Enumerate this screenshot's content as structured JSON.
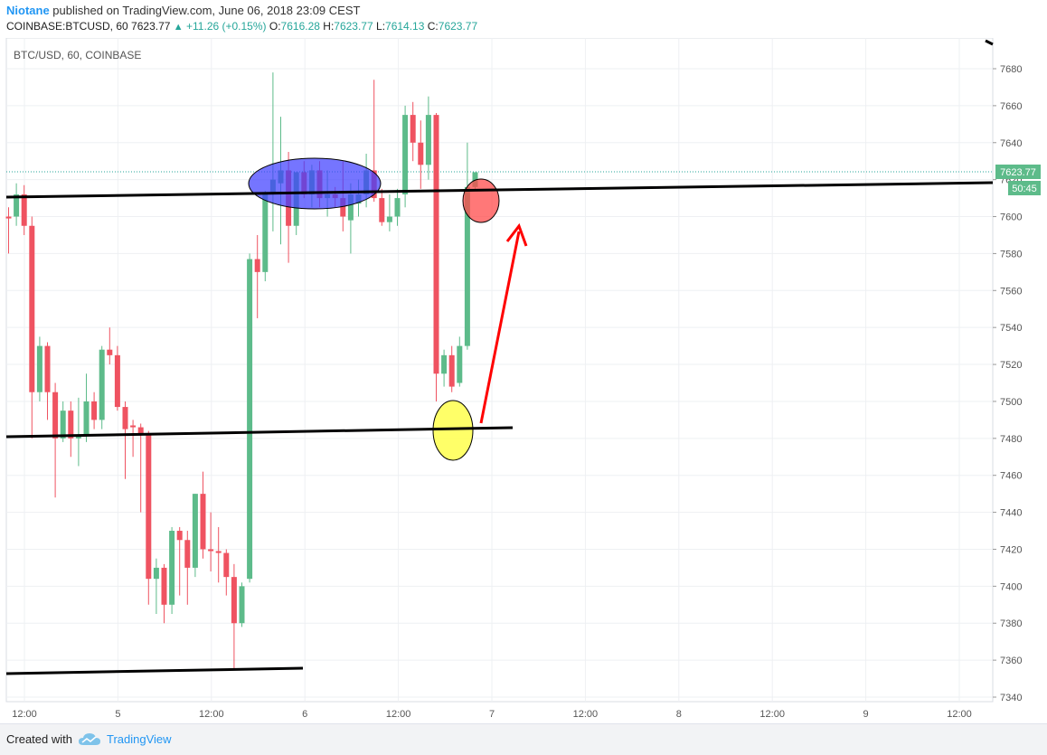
{
  "header": {
    "author": "Niotane",
    "published": "published on TradingView.com, June 06, 2018 23:09 CEST",
    "symbol": "COINBASE:BTCUSD, 60",
    "last": "7623.77",
    "change": "+11.26 (+0.15%)",
    "o_label": "O:",
    "o_value": "7616.28",
    "h_label": "H:",
    "h_value": "7623.77",
    "l_label": "L:",
    "l_value": "7614.13",
    "c_label": "C:",
    "c_value": "7623.77"
  },
  "footer": {
    "created_with": "Created with",
    "brand": "TradingView"
  },
  "colors": {
    "up": "#26a69a",
    "up_body": "#5dbb8a",
    "down": "#ef5361",
    "grid": "#eef0f3",
    "trendline": "#000000",
    "arrow": "#ff0000"
  },
  "chart_data": {
    "type": "candlestick",
    "title": "BTC/USD, 60, COINBASE",
    "ylim": [
      7335,
      7695
    ],
    "y_ticks": [
      7340,
      7360,
      7380,
      7400,
      7420,
      7440,
      7460,
      7480,
      7500,
      7520,
      7540,
      7560,
      7580,
      7600,
      7620,
      7640,
      7660,
      7680
    ],
    "x_ticks": [
      "12:00",
      "5",
      "12:00",
      "6",
      "12:00",
      "7",
      "12:00",
      "8",
      "12:00",
      "9",
      "12:00"
    ],
    "last_price_label": "7623.77",
    "countdown_label": "50:45",
    "candles": [
      {
        "o": 7600,
        "h": 7605,
        "l": 7580,
        "c": 7599
      },
      {
        "o": 7600,
        "h": 7618,
        "l": 7595,
        "c": 7612
      },
      {
        "o": 7612,
        "h": 7617,
        "l": 7590,
        "c": 7595
      },
      {
        "o": 7595,
        "h": 7600,
        "l": 7480,
        "c": 7505
      },
      {
        "o": 7505,
        "h": 7535,
        "l": 7500,
        "c": 7530
      },
      {
        "o": 7530,
        "h": 7532,
        "l": 7490,
        "c": 7505
      },
      {
        "o": 7505,
        "h": 7510,
        "l": 7448,
        "c": 7480
      },
      {
        "o": 7480,
        "h": 7500,
        "l": 7478,
        "c": 7495
      },
      {
        "o": 7495,
        "h": 7500,
        "l": 7470,
        "c": 7480
      },
      {
        "o": 7480,
        "h": 7502,
        "l": 7465,
        "c": 7482
      },
      {
        "o": 7482,
        "h": 7515,
        "l": 7478,
        "c": 7500
      },
      {
        "o": 7500,
        "h": 7505,
        "l": 7485,
        "c": 7490
      },
      {
        "o": 7490,
        "h": 7530,
        "l": 7485,
        "c": 7528
      },
      {
        "o": 7528,
        "h": 7540,
        "l": 7520,
        "c": 7525
      },
      {
        "o": 7525,
        "h": 7530,
        "l": 7495,
        "c": 7497
      },
      {
        "o": 7497,
        "h": 7500,
        "l": 7458,
        "c": 7485
      },
      {
        "o": 7487,
        "h": 7490,
        "l": 7470,
        "c": 7486
      },
      {
        "o": 7486,
        "h": 7488,
        "l": 7440,
        "c": 7482
      },
      {
        "o": 7482,
        "h": 7484,
        "l": 7390,
        "c": 7404
      },
      {
        "o": 7404,
        "h": 7415,
        "l": 7385,
        "c": 7410
      },
      {
        "o": 7410,
        "h": 7412,
        "l": 7380,
        "c": 7390
      },
      {
        "o": 7390,
        "h": 7432,
        "l": 7385,
        "c": 7430
      },
      {
        "o": 7430,
        "h": 7432,
        "l": 7395,
        "c": 7425
      },
      {
        "o": 7425,
        "h": 7430,
        "l": 7390,
        "c": 7410
      },
      {
        "o": 7410,
        "h": 7450,
        "l": 7405,
        "c": 7450
      },
      {
        "o": 7450,
        "h": 7462,
        "l": 7415,
        "c": 7420
      },
      {
        "o": 7420,
        "h": 7440,
        "l": 7408,
        "c": 7419
      },
      {
        "o": 7419,
        "h": 7432,
        "l": 7402,
        "c": 7418
      },
      {
        "o": 7418,
        "h": 7420,
        "l": 7395,
        "c": 7405
      },
      {
        "o": 7405,
        "h": 7412,
        "l": 7355,
        "c": 7380
      },
      {
        "o": 7380,
        "h": 7402,
        "l": 7378,
        "c": 7400
      },
      {
        "o": 7404,
        "h": 7580,
        "l": 7402,
        "c": 7577
      },
      {
        "o": 7577,
        "h": 7590,
        "l": 7545,
        "c": 7570
      },
      {
        "o": 7570,
        "h": 7614,
        "l": 7565,
        "c": 7612
      },
      {
        "o": 7612,
        "h": 7678,
        "l": 7592,
        "c": 7620
      },
      {
        "o": 7618,
        "h": 7654,
        "l": 7585,
        "c": 7625
      },
      {
        "o": 7625,
        "h": 7635,
        "l": 7575,
        "c": 7595
      },
      {
        "o": 7595,
        "h": 7624,
        "l": 7590,
        "c": 7624
      },
      {
        "o": 7624,
        "h": 7630,
        "l": 7610,
        "c": 7612
      },
      {
        "o": 7612,
        "h": 7628,
        "l": 7605,
        "c": 7625
      },
      {
        "o": 7625,
        "h": 7630,
        "l": 7605,
        "c": 7610
      },
      {
        "o": 7610,
        "h": 7625,
        "l": 7600,
        "c": 7612
      },
      {
        "o": 7612,
        "h": 7616,
        "l": 7605,
        "c": 7610
      },
      {
        "o": 7610,
        "h": 7630,
        "l": 7592,
        "c": 7600
      },
      {
        "o": 7598,
        "h": 7618,
        "l": 7580,
        "c": 7612
      },
      {
        "o": 7607,
        "h": 7620,
        "l": 7600,
        "c": 7612
      },
      {
        "o": 7612,
        "h": 7634,
        "l": 7605,
        "c": 7625
      },
      {
        "o": 7625,
        "h": 7674,
        "l": 7608,
        "c": 7610
      },
      {
        "o": 7610,
        "h": 7615,
        "l": 7595,
        "c": 7597
      },
      {
        "o": 7597,
        "h": 7612,
        "l": 7592,
        "c": 7600
      },
      {
        "o": 7600,
        "h": 7615,
        "l": 7595,
        "c": 7610
      },
      {
        "o": 7612,
        "h": 7660,
        "l": 7605,
        "c": 7655
      },
      {
        "o": 7655,
        "h": 7662,
        "l": 7630,
        "c": 7640
      },
      {
        "o": 7640,
        "h": 7652,
        "l": 7615,
        "c": 7628
      },
      {
        "o": 7628,
        "h": 7665,
        "l": 7620,
        "c": 7655
      },
      {
        "o": 7655,
        "h": 7656,
        "l": 7500,
        "c": 7515
      },
      {
        "o": 7515,
        "h": 7528,
        "l": 7508,
        "c": 7525
      },
      {
        "o": 7525,
        "h": 7530,
        "l": 7505,
        "c": 7508
      },
      {
        "o": 7510,
        "h": 7535,
        "l": 7508,
        "c": 7530
      },
      {
        "o": 7530,
        "h": 7640,
        "l": 7528,
        "c": 7616
      },
      {
        "o": 7616,
        "h": 7624,
        "l": 7614,
        "c": 7624
      }
    ]
  }
}
